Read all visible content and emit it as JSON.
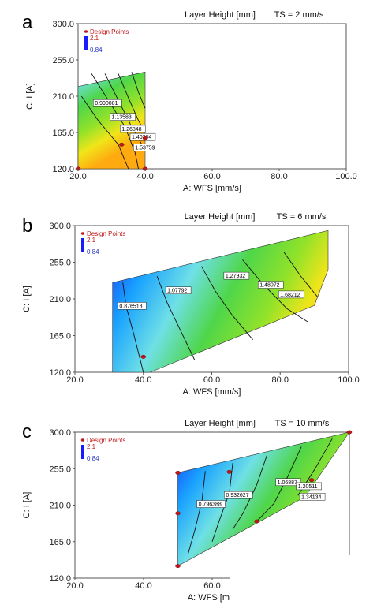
{
  "panels": [
    {
      "letter": "a",
      "title": "Layer Height [mm]",
      "ts_label": "TS = 2 mm/s",
      "legend": {
        "header": "Design Points",
        "max": "2.1",
        "min": "0.84"
      },
      "xlabel": "A: WFS [mm/s]",
      "ylabel": "C: I [A]",
      "xticks": [
        "20.0",
        "40.0",
        "60.0",
        "80.0",
        "100.0"
      ],
      "yticks": [
        "300.0",
        "255.0",
        "210.0",
        "165.0",
        "120.0"
      ],
      "contour_labels": [
        "0.990081",
        "1.13583",
        "1.26848",
        "1.40304",
        "1.53759"
      ]
    },
    {
      "letter": "b",
      "title": "Layer Height [mm]",
      "ts_label": "TS = 6 mm/s",
      "legend": {
        "header": "Design Points",
        "max": "2.1",
        "min": "0.84"
      },
      "xlabel": "A: WFS [mm/s]",
      "ylabel": "C: I [A]",
      "xticks": [
        "20.0",
        "40.0",
        "60.0",
        "80.0",
        "100.0"
      ],
      "yticks": [
        "300.0",
        "255.0",
        "210.0",
        "165.0",
        "120.0"
      ],
      "contour_labels": [
        "0.876518",
        "1.07792",
        "1.27932",
        "1.48072",
        "1.68212"
      ]
    },
    {
      "letter": "c",
      "title": "Layer Height [mm]",
      "ts_label": "TS = 10 mm/s",
      "legend": {
        "header": "Design Points",
        "max": "2.1",
        "min": "0.84"
      },
      "xlabel": "A: WFS [mm",
      "ylabel": "C: I [A]",
      "xticks": [
        "20.0",
        "40.0",
        "60.0"
      ],
      "yticks": [
        "300.0",
        "255.0",
        "210.0",
        "165.0",
        "120.0"
      ],
      "contour_labels": [
        "0.796388",
        "0.932627",
        "1.06887",
        "1.20511",
        "1.34134"
      ]
    }
  ],
  "chart_data": [
    {
      "type": "heatmap",
      "title": "Layer Height [mm]",
      "annotation": "TS = 2 mm/s",
      "xlabel": "A: WFS [mm/s]",
      "ylabel": "C: I [A]",
      "xlim": [
        20,
        100
      ],
      "ylim": [
        120,
        300
      ],
      "colorbar_range": [
        0.84,
        2.1
      ],
      "region": [
        [
          20,
          120
        ],
        [
          40,
          120
        ],
        [
          40,
          240
        ],
        [
          20,
          222
        ]
      ],
      "contours": [
        {
          "level": 0.990081,
          "path": [
            [
              21,
              210
            ],
            [
              26,
              180
            ],
            [
              32,
              150
            ],
            [
              35,
              120
            ]
          ]
        },
        {
          "level": 1.13583,
          "path": [
            [
              24,
              238
            ],
            [
              29,
              205
            ],
            [
              34,
              172
            ],
            [
              37,
              140
            ],
            [
              38,
              120
            ]
          ]
        },
        {
          "level": 1.26848,
          "path": [
            [
              28,
              238
            ],
            [
              32,
              205
            ],
            [
              36,
              172
            ],
            [
              40,
              143
            ]
          ]
        },
        {
          "level": 1.40304,
          "path": [
            [
              32,
              238
            ],
            [
              35,
              208
            ],
            [
              38,
              180
            ],
            [
              40,
              165
            ]
          ]
        },
        {
          "level": 1.53759,
          "path": [
            [
              36,
              240
            ],
            [
              38,
              215
            ],
            [
              40,
              195
            ]
          ]
        }
      ],
      "design_points": [
        [
          20,
          120
        ],
        [
          40,
          120
        ],
        [
          33,
          150
        ],
        [
          40,
          158
        ]
      ],
      "contour_label_positions": [
        [
          25,
          199
        ],
        [
          30,
          182
        ],
        [
          33,
          167
        ],
        [
          36,
          157
        ],
        [
          37,
          144
        ]
      ]
    },
    {
      "type": "heatmap",
      "title": "Layer Height [mm]",
      "annotation": "TS = 6 mm/s",
      "xlabel": "A: WFS [mm/s]",
      "ylabel": "C: I [A]",
      "xlim": [
        20,
        100
      ],
      "ylim": [
        120,
        300
      ],
      "colorbar_range": [
        0.84,
        2.1
      ],
      "region": [
        [
          31,
          120
        ],
        [
          94,
          120
        ],
        [
          94,
          246
        ],
        [
          90,
          202
        ],
        [
          42,
          120
        ],
        [
          31,
          120
        ],
        [
          31,
          230
        ],
        [
          94,
          294
        ]
      ],
      "contours": [
        {
          "level": 0.876518,
          "path": [
            [
              34,
              230
            ],
            [
              35,
              200
            ],
            [
              37,
              170
            ],
            [
              40,
              120
            ]
          ]
        },
        {
          "level": 1.07792,
          "path": [
            [
              44,
              238
            ],
            [
              47,
              205
            ],
            [
              51,
              170
            ],
            [
              55,
              135
            ]
          ]
        },
        {
          "level": 1.27932,
          "path": [
            [
              57,
              250
            ],
            [
              61,
              220
            ],
            [
              66,
              190
            ],
            [
              72,
              160
            ]
          ]
        },
        {
          "level": 1.48072,
          "path": [
            [
              69,
              258
            ],
            [
              75,
              228
            ],
            [
              82,
              198
            ],
            [
              88,
              182
            ]
          ]
        },
        {
          "level": 1.68212,
          "path": [
            [
              81,
              268
            ],
            [
              86,
              238
            ],
            [
              91,
              212
            ]
          ]
        }
      ],
      "design_points": [
        [
          40,
          139
        ]
      ],
      "contour_label_positions": [
        [
          33,
          199
        ],
        [
          47,
          218
        ],
        [
          64,
          236
        ],
        [
          74,
          225
        ],
        [
          80,
          213
        ]
      ]
    },
    {
      "type": "heatmap",
      "title": "Layer Height [mm]",
      "annotation": "TS = 10 mm/s",
      "xlabel": "A: WFS [mm",
      "ylabel": "C: I [A]",
      "xlim": [
        20,
        100
      ],
      "ylim": [
        120,
        300
      ],
      "colorbar_range": [
        0.84,
        2.1
      ],
      "region": [
        [
          50,
          135
        ],
        [
          50,
          250
        ],
        [
          100,
          300
        ],
        [
          87,
          220
        ],
        [
          50,
          135
        ]
      ],
      "contours": [
        {
          "level": 0.796388,
          "path": [
            [
              58,
              252
            ],
            [
              57,
              215
            ],
            [
              55,
              180
            ],
            [
              53,
              150
            ]
          ]
        },
        {
          "level": 0.932627,
          "path": [
            [
              66,
              262
            ],
            [
              65,
              225
            ],
            [
              62,
              190
            ],
            [
              60,
              165
            ]
          ]
        },
        {
          "level": 1.06887,
          "path": [
            [
              76,
              272
            ],
            [
              73,
              235
            ],
            [
              69,
              200
            ],
            [
              66,
              180
            ]
          ]
        },
        {
          "level": 1.20511,
          "path": [
            [
              86,
              282
            ],
            [
              82,
              245
            ],
            [
              78,
              212
            ],
            [
              73,
              190
            ]
          ]
        },
        {
          "level": 1.34134,
          "path": [
            [
              95,
              292
            ],
            [
              90,
              255
            ],
            [
              85,
              222
            ]
          ]
        }
      ],
      "design_points": [
        [
          50,
          250
        ],
        [
          50,
          200
        ],
        [
          50,
          135
        ],
        [
          65,
          251
        ],
        [
          100,
          300
        ],
        [
          89,
          241
        ],
        [
          73,
          190
        ]
      ],
      "contour_label_positions": [
        [
          56,
          209
        ],
        [
          64,
          220
        ],
        [
          79,
          236
        ],
        [
          85,
          231
        ],
        [
          86,
          218
        ]
      ]
    }
  ]
}
